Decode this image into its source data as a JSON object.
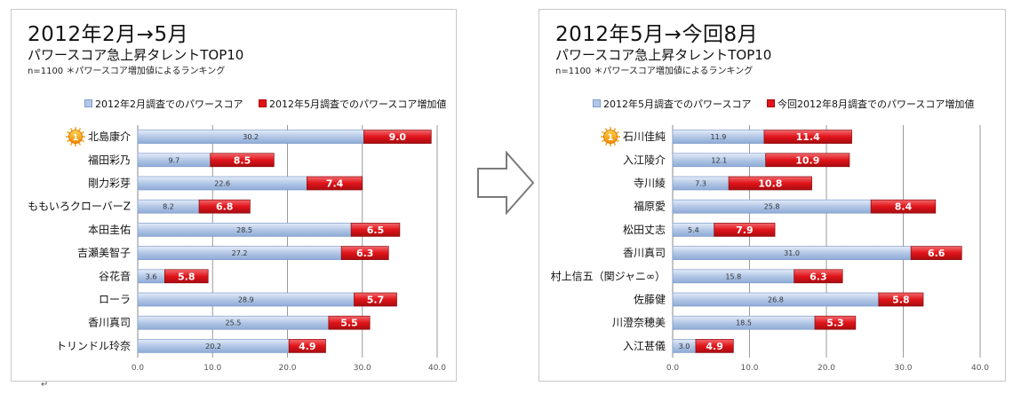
{
  "chart_data": [
    {
      "type": "bar",
      "stacked": true,
      "orientation": "horizontal",
      "title": "2012年2月→5月",
      "subtitle": "パワースコア急上昇タレントTOP10",
      "note": "n=1100 ＊パワースコア増加値によるランキング",
      "legend_position": "top",
      "xlim": [
        0,
        40
      ],
      "xticks": [
        "0.0",
        "10.0",
        "20.0",
        "30.0",
        "40.0"
      ],
      "grid": true,
      "rank_badge": "1",
      "categories": [
        "北島康介",
        "福田彩乃",
        "剛力彩芽",
        "ももいろクローバーZ",
        "本田圭佑",
        "吉瀬美智子",
        "谷花音",
        "ローラ",
        "香川真司",
        "トリンドル玲奈"
      ],
      "series": [
        {
          "name": "2012年2月調査でのパワースコア",
          "color": "#b3c7e6",
          "labels": [
            "30.2",
            "9.7",
            "22.6",
            "8.2",
            "28.5",
            "27.2",
            "3.6",
            "28.9",
            "25.5",
            "20.2"
          ],
          "values": [
            30.2,
            9.7,
            22.6,
            8.2,
            28.5,
            27.2,
            3.6,
            28.9,
            25.5,
            20.2
          ]
        },
        {
          "name": "2012年5月調査でのパワースコア増加値",
          "color": "#e0141a",
          "labels": [
            "9.0",
            "8.5",
            "7.4",
            "6.8",
            "6.5",
            "6.3",
            "5.8",
            "5.7",
            "5.5",
            "4.9"
          ],
          "values": [
            9.0,
            8.5,
            7.4,
            6.8,
            6.5,
            6.3,
            5.8,
            5.7,
            5.5,
            4.9
          ]
        }
      ]
    },
    {
      "type": "bar",
      "stacked": true,
      "orientation": "horizontal",
      "title": "2012年5月→今回8月",
      "subtitle": "パワースコア急上昇タレントTOP10",
      "note": "n=1100 ＊パワースコア増加値によるランキング",
      "legend_position": "top",
      "xlim": [
        0,
        40
      ],
      "xticks": [
        "0.0",
        "10.0",
        "20.0",
        "30.0",
        "40.0"
      ],
      "grid": true,
      "rank_badge": "1",
      "categories": [
        "石川佳純",
        "入江陵介",
        "寺川綾",
        "福原愛",
        "松田丈志",
        "香川真司",
        "村上信五（関ジャニ∞）",
        "佐藤健",
        "川澄奈穂美",
        "入江甚儀"
      ],
      "series": [
        {
          "name": "2012年5月調査でのパワースコア",
          "color": "#b3c7e6",
          "labels": [
            "11.9",
            "12.1",
            "7.3",
            "25.8",
            "5.4",
            "31.0",
            "15.8",
            "26.8",
            "18.5",
            "3.0"
          ],
          "values": [
            11.9,
            12.1,
            7.3,
            25.8,
            5.4,
            31.0,
            15.8,
            26.8,
            18.5,
            3.0
          ]
        },
        {
          "name": "今回2012年8月調査でのパワースコア増加値",
          "color": "#e0141a",
          "labels": [
            "11.4",
            "10.9",
            "10.8",
            "8.4",
            "7.9",
            "6.6",
            "6.3",
            "5.8",
            "5.3",
            "4.9"
          ],
          "values": [
            11.4,
            10.9,
            10.8,
            8.4,
            7.9,
            6.6,
            6.3,
            5.8,
            5.3,
            4.9
          ]
        }
      ]
    }
  ],
  "arrow_icon": "right-arrow-outline-icon",
  "end_mark": "↵"
}
